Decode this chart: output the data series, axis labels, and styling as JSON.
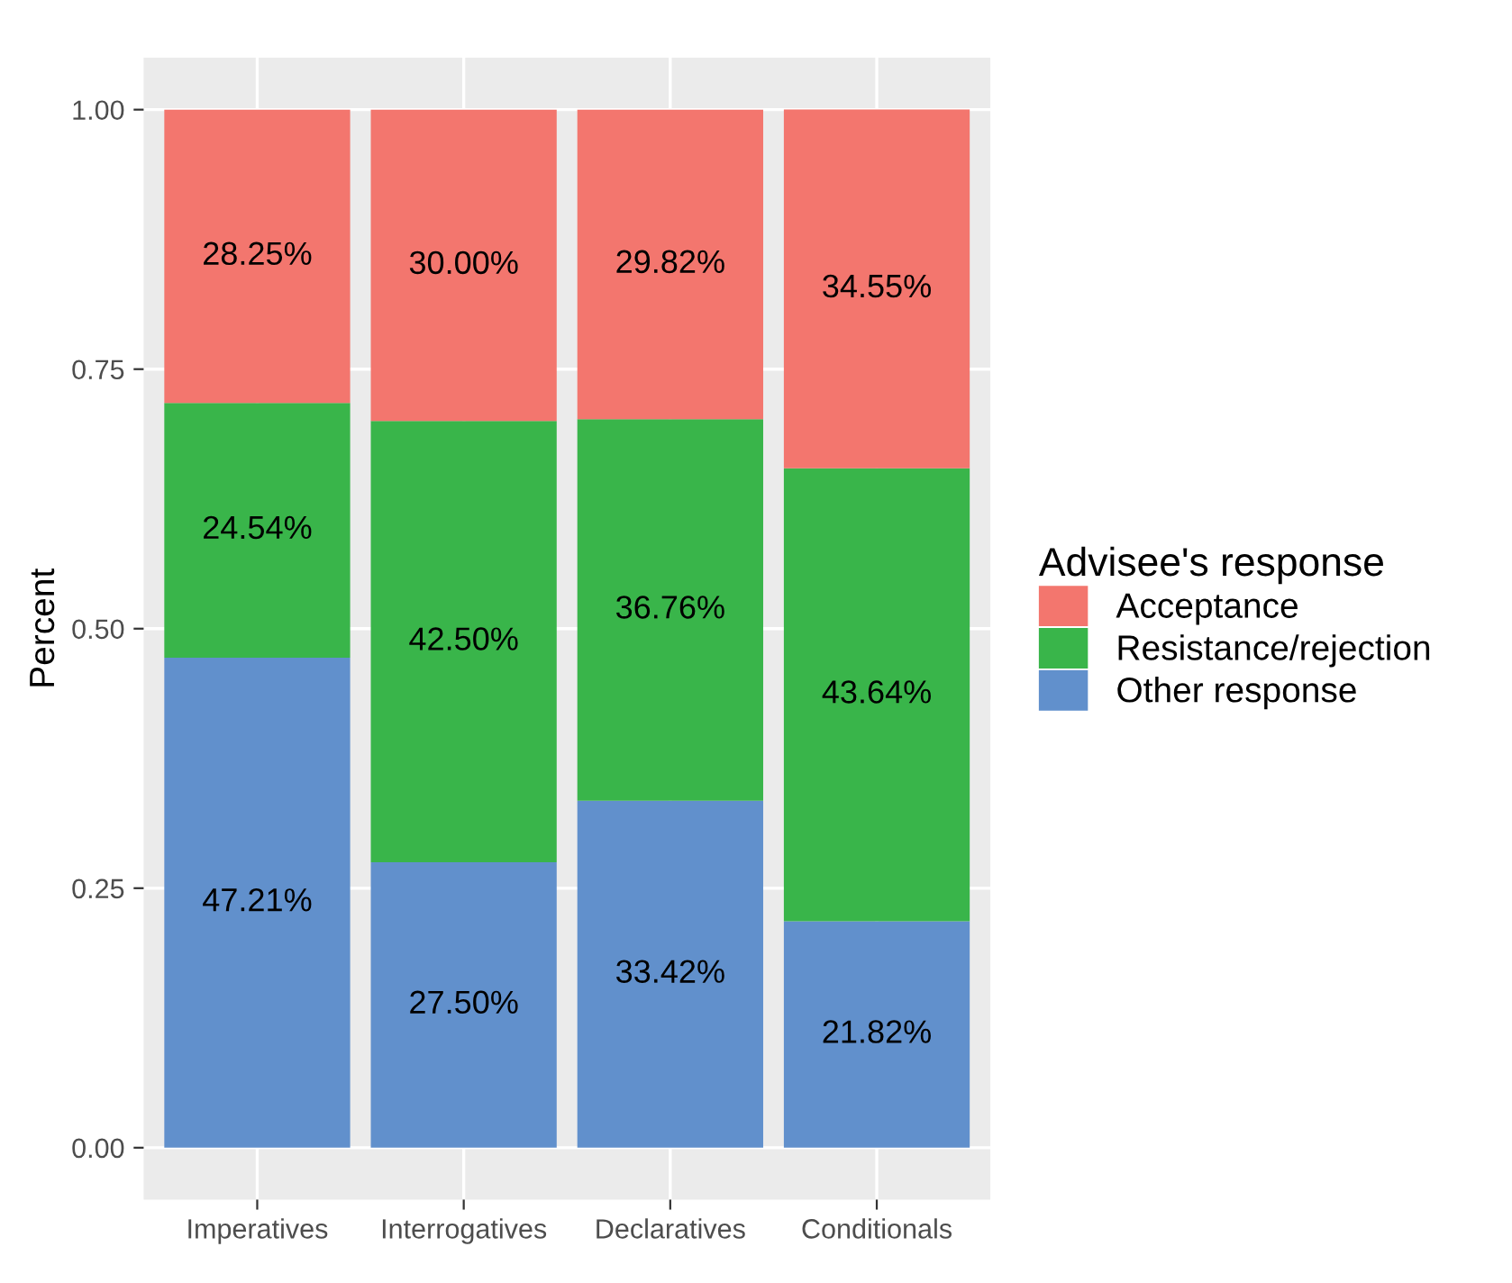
{
  "chart_data": {
    "type": "bar",
    "stacked": true,
    "ylabel": "Percent",
    "legend_title": "Advisee's response",
    "legend": "right",
    "categories": [
      "Imperatives",
      "Interrogatives",
      "Declaratives",
      "Conditionals"
    ],
    "series": [
      {
        "name": "Other response",
        "color": "#6190cc",
        "values": [
          0.4721,
          0.275,
          0.3342,
          0.2182
        ],
        "value_labels": [
          "47.21%",
          "27.50%",
          "33.42%",
          "21.82%"
        ]
      },
      {
        "name": "Resistance/rejection",
        "color": "#39b54a",
        "values": [
          0.2454,
          0.425,
          0.3676,
          0.4364
        ],
        "value_labels": [
          "24.54%",
          "42.50%",
          "36.76%",
          "43.64%"
        ]
      },
      {
        "name": "Acceptance",
        "color": "#f3766e",
        "values": [
          0.2825,
          0.3,
          0.2982,
          0.3455
        ],
        "value_labels": [
          "28.25%",
          "30.00%",
          "29.82%",
          "34.55%"
        ]
      }
    ],
    "ylim": [
      -0.05,
      1.05
    ],
    "yticks": [
      {
        "value": 0,
        "label": "0.00"
      },
      {
        "value": 0.25,
        "label": "0.25"
      },
      {
        "value": 0.5,
        "label": "0.50"
      },
      {
        "value": 0.75,
        "label": "0.75"
      },
      {
        "value": 1,
        "label": "1.00"
      }
    ],
    "grid": true
  }
}
